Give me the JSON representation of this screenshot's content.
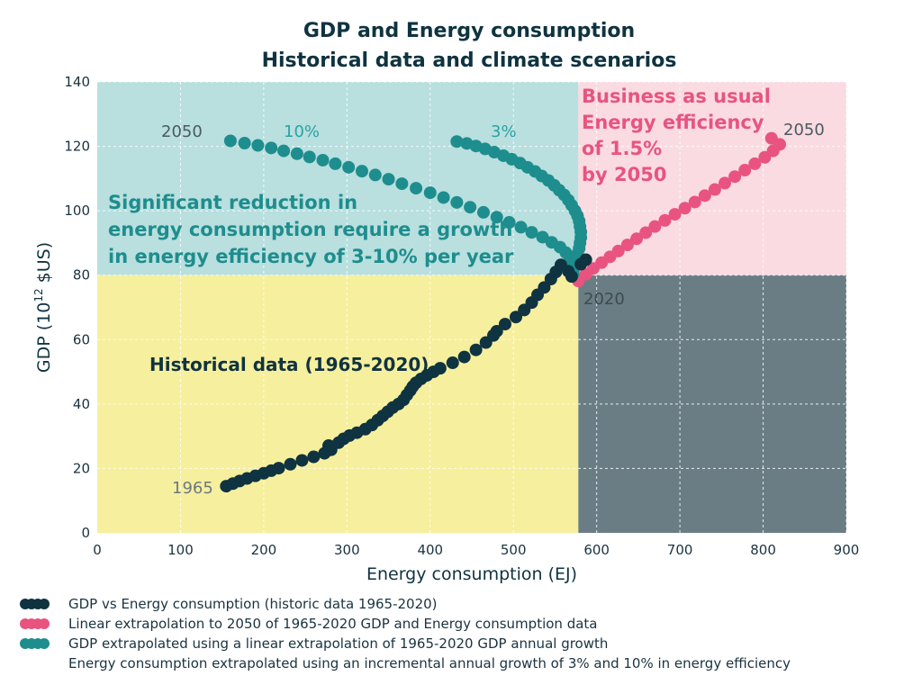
{
  "chart_data": {
    "type": "scatter",
    "title": "GDP and Energy consumption",
    "subtitle": "Historical data and climate scenarios",
    "xlabel": "Energy consumption (EJ)",
    "ylabel": "GDP (10",
    "ylabel_sup": "12",
    "ylabel_tail": " $US)",
    "xlim": [
      0,
      900
    ],
    "ylim": [
      0,
      140
    ],
    "x_ticks": [
      0,
      100,
      200,
      300,
      400,
      500,
      600,
      700,
      800,
      900
    ],
    "y_ticks": [
      0,
      20,
      40,
      60,
      80,
      100,
      120,
      140
    ],
    "colors": {
      "historic": "#0f3340",
      "bau": "#e8547f",
      "efficiency": "#1e8d8d",
      "region_top_left": "#b9dfdf",
      "region_top_right": "#fadbe2",
      "region_bottom_left": "#f6ef9e",
      "region_bottom_right": "#6a7d84"
    },
    "regions": [
      {
        "name": "top-left",
        "x": [
          0,
          578
        ],
        "y": [
          80,
          140
        ]
      },
      {
        "name": "top-right",
        "x": [
          578,
          900
        ],
        "y": [
          80,
          140
        ]
      },
      {
        "name": "bottom-left",
        "x": [
          0,
          578
        ],
        "y": [
          0,
          80
        ]
      },
      {
        "name": "bottom-right",
        "x": [
          578,
          900
        ],
        "y": [
          0,
          80
        ]
      }
    ],
    "series": [
      {
        "key": "historic",
        "points": [
          [
            155,
            14.5
          ],
          [
            163,
            15.3
          ],
          [
            171,
            16.1
          ],
          [
            180,
            16.9
          ],
          [
            190,
            17.7
          ],
          [
            200,
            18.5
          ],
          [
            209,
            19.3
          ],
          [
            218,
            20.1
          ],
          [
            232,
            21.3
          ],
          [
            246,
            22.5
          ],
          [
            260,
            23.6
          ],
          [
            273,
            24.7
          ],
          [
            281,
            25.8
          ],
          [
            278,
            27.1
          ],
          [
            290,
            28.0
          ],
          [
            296,
            29.2
          ],
          [
            303,
            30.2
          ],
          [
            312,
            31.1
          ],
          [
            322,
            32.2
          ],
          [
            330,
            33.5
          ],
          [
            337,
            35.0
          ],
          [
            343,
            36.3
          ],
          [
            349,
            37.6
          ],
          [
            355,
            38.9
          ],
          [
            362,
            40.0
          ],
          [
            368,
            41.3
          ],
          [
            372,
            42.8
          ],
          [
            376,
            44.2
          ],
          [
            379,
            45.4
          ],
          [
            383,
            46.6
          ],
          [
            389,
            47.8
          ],
          [
            396,
            48.9
          ],
          [
            404,
            50.0
          ],
          [
            412,
            51.1
          ],
          [
            427,
            52.8
          ],
          [
            441,
            54.6
          ],
          [
            455,
            56.8
          ],
          [
            467,
            59.1
          ],
          [
            476,
            61.3
          ],
          [
            480,
            62.6
          ],
          [
            490,
            64.8
          ],
          [
            503,
            67.0
          ],
          [
            513,
            69.2
          ],
          [
            522,
            71.5
          ],
          [
            529,
            73.9
          ],
          [
            537,
            76.2
          ],
          [
            545,
            78.8
          ],
          [
            551,
            81.0
          ],
          [
            557,
            83.2
          ],
          [
            566,
            81.2
          ],
          [
            570,
            79.6
          ],
          [
            581,
            83.4
          ],
          [
            587,
            84.8
          ]
        ]
      },
      {
        "key": "bau",
        "points": [
          [
            578,
            78.2
          ],
          [
            587,
            80.3
          ],
          [
            596,
            82.1
          ],
          [
            606,
            83.9
          ],
          [
            616,
            85.7
          ],
          [
            626,
            87.5
          ],
          [
            637,
            89.4
          ],
          [
            648,
            91.3
          ],
          [
            659,
            93.2
          ],
          [
            670,
            95.1
          ],
          [
            682,
            97.0
          ],
          [
            694,
            98.9
          ],
          [
            706,
            100.8
          ],
          [
            718,
            102.7
          ],
          [
            730,
            104.7
          ],
          [
            742,
            106.6
          ],
          [
            754,
            108.6
          ],
          [
            766,
            110.6
          ],
          [
            778,
            112.6
          ],
          [
            790,
            114.6
          ],
          [
            802,
            116.6
          ],
          [
            812,
            118.6
          ],
          [
            820,
            120.6
          ],
          [
            810,
            122.5
          ]
        ]
      },
      {
        "key": "ten-percent",
        "points": [
          [
            160,
            121.7
          ],
          [
            177,
            121.0
          ],
          [
            193,
            120.3
          ],
          [
            209,
            119.5
          ],
          [
            224,
            118.6
          ],
          [
            240,
            117.7
          ],
          [
            255,
            116.7
          ],
          [
            271,
            115.7
          ],
          [
            286,
            114.6
          ],
          [
            302,
            113.5
          ],
          [
            318,
            112.3
          ],
          [
            334,
            111.1
          ],
          [
            350,
            109.8
          ],
          [
            366,
            108.4
          ],
          [
            383,
            107.0
          ],
          [
            400,
            105.6
          ],
          [
            416,
            104.1
          ],
          [
            432,
            102.6
          ],
          [
            448,
            101.1
          ],
          [
            464,
            99.5
          ],
          [
            480,
            98.0
          ],
          [
            495,
            96.4
          ],
          [
            509,
            94.9
          ],
          [
            522,
            93.3
          ],
          [
            535,
            91.8
          ],
          [
            546,
            90.2
          ],
          [
            556,
            88.7
          ],
          [
            563,
            87.0
          ],
          [
            568,
            85.4
          ],
          [
            571,
            83.7
          ],
          [
            572,
            82.0
          ],
          [
            572,
            80.6
          ]
        ]
      },
      {
        "key": "three-percent",
        "points": [
          [
            432,
            121.5
          ],
          [
            444,
            120.9
          ],
          [
            455,
            120.1
          ],
          [
            466,
            119.2
          ],
          [
            477,
            118.2
          ],
          [
            488,
            117.1
          ],
          [
            498,
            116.0
          ],
          [
            508,
            114.8
          ],
          [
            517,
            113.5
          ],
          [
            526,
            112.2
          ],
          [
            534,
            110.8
          ],
          [
            542,
            109.4
          ],
          [
            549,
            107.9
          ],
          [
            555,
            106.4
          ],
          [
            561,
            104.9
          ],
          [
            566,
            103.3
          ],
          [
            570,
            101.7
          ],
          [
            574,
            100.0
          ],
          [
            577,
            98.4
          ],
          [
            579,
            96.8
          ],
          [
            580,
            95.1
          ],
          [
            581,
            93.4
          ],
          [
            581,
            91.7
          ],
          [
            580,
            90.0
          ],
          [
            579,
            88.3
          ],
          [
            577,
            86.6
          ],
          [
            576,
            84.9
          ],
          [
            574,
            83.2
          ],
          [
            572,
            81.5
          ]
        ]
      }
    ],
    "annotations": {
      "region_tl": [
        "Significant reduction in",
        "energy consumption require a growth",
        "in energy efficiency of 3-10% per year"
      ],
      "region_tr": [
        "Business as usual",
        "Energy efficiency",
        "of 1.5%",
        "by 2050"
      ],
      "historic_label": "Historical data (1965-2020)",
      "label_2050_left": "2050",
      "label_10pct": "10%",
      "label_3pct": "3%",
      "label_2050_right": "2050",
      "label_2020": "2020",
      "label_1965": "1965"
    },
    "legend": [
      {
        "key": "historic",
        "color": "#0f3340",
        "label": "GDP vs Energy consumption (historic data 1965-2020)"
      },
      {
        "key": "bau",
        "color": "#e8547f",
        "label": "Linear extrapolation to 2050 of 1965-2020 GDP and Energy consumption data"
      },
      {
        "key": "efficiency",
        "color": "#1e8d8d",
        "label": "GDP extrapolated using a linear extrapolation of 1965-2020 GDP annual growth"
      }
    ],
    "legend_note": "Energy consumption extrapolated using an incremental annual growth of 3% and 10% in energy efficiency",
    "grid": true,
    "legend_position": "bottom"
  }
}
